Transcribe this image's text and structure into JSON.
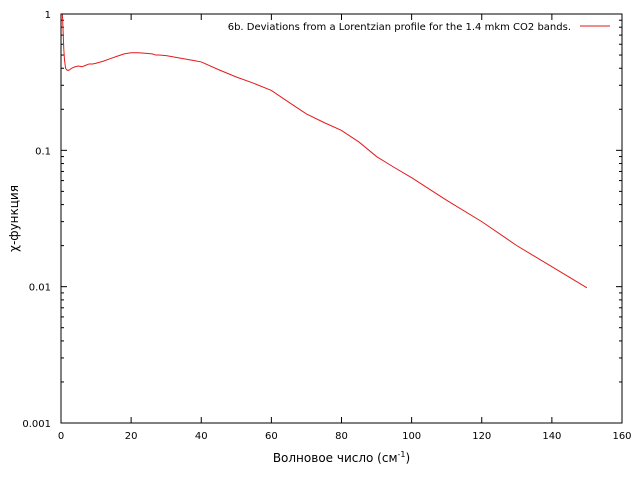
{
  "chart_data": {
    "type": "line",
    "xlabel": "Волновое число (см",
    "xlabel_sup": "-1",
    "xlabel_close": ")",
    "ylabel": "χ-функция",
    "xlim": [
      0,
      160
    ],
    "ylim": [
      0.001,
      1
    ],
    "yscale": "log",
    "grid": false,
    "legend_position": "top-right",
    "x_ticks": [
      0,
      20,
      40,
      60,
      80,
      100,
      120,
      140,
      160
    ],
    "x_tick_labels": [
      "0",
      "20",
      "40",
      "60",
      "80",
      "100",
      "120",
      "140",
      "160"
    ],
    "y_ticks": [
      0.001,
      0.01,
      0.1,
      1
    ],
    "y_tick_labels": [
      "0.001",
      "0.01",
      "0.1",
      "1"
    ],
    "series": [
      {
        "name": "6b. Deviations from a Lorentzian profile for the 1.4 mkm CO2 bands.",
        "color": "#e31a1c",
        "x": [
          0.4,
          0.6,
          0.8,
          1.0,
          1.3,
          1.6,
          2.0,
          2.5,
          3,
          4,
          5,
          6,
          7,
          8,
          9,
          10,
          12,
          14,
          16,
          18,
          20,
          22,
          24,
          26,
          27,
          28,
          30,
          32,
          35,
          38,
          40,
          45,
          50,
          55,
          60,
          65,
          70,
          75,
          80,
          85,
          90,
          95,
          100,
          110,
          120,
          130,
          140,
          150
        ],
        "y": [
          1.0,
          0.75,
          0.55,
          0.46,
          0.4,
          0.39,
          0.385,
          0.39,
          0.4,
          0.41,
          0.415,
          0.41,
          0.42,
          0.43,
          0.43,
          0.435,
          0.45,
          0.47,
          0.49,
          0.51,
          0.52,
          0.52,
          0.515,
          0.51,
          0.5,
          0.5,
          0.495,
          0.485,
          0.47,
          0.455,
          0.445,
          0.39,
          0.345,
          0.31,
          0.275,
          0.225,
          0.185,
          0.16,
          0.14,
          0.115,
          0.09,
          0.075,
          0.063,
          0.043,
          0.03,
          0.02,
          0.014,
          0.0098
        ]
      }
    ]
  }
}
